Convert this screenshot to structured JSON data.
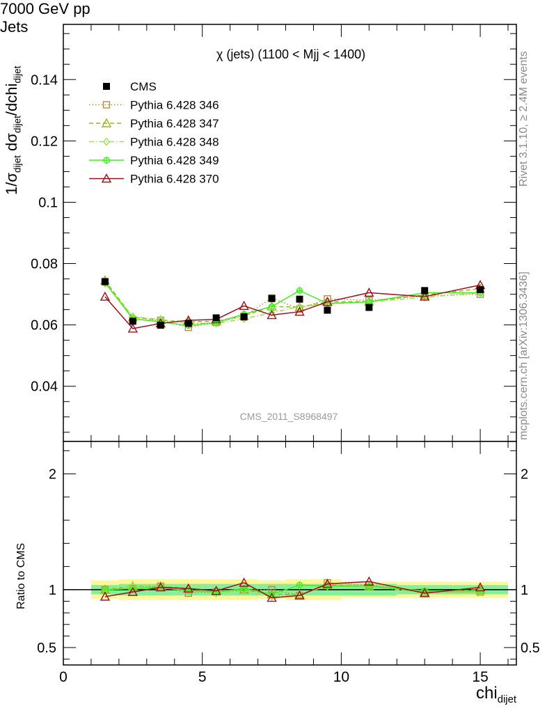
{
  "header": {
    "left": "7000 GeV pp",
    "right": "Jets"
  },
  "side_labels": {
    "rivet": "Rivet 3.1.10, ≥ 2.4M events",
    "mcplots": "mcplots.cern.ch [arXiv:1306.3436]"
  },
  "analysis_id": "CMS_2011_S8968497",
  "chart_data": [
    {
      "type": "line",
      "panel": "main",
      "title": "χ (jets) (1100 < Mjj < 1400)",
      "ylabel_main": "1/σ",
      "ylabel_sub1": "dijet",
      "ylabel_mid": " dσ",
      "ylabel_sub2": "dijet",
      "ylabel_end": "/dchi",
      "ylabel_sub3": "dijet",
      "xlim": [
        0,
        16.3
      ],
      "ylim": [
        0.022,
        0.158
      ],
      "yticks": [
        0.04,
        0.06,
        0.08,
        0.1,
        0.12,
        0.14
      ],
      "ytick_labels": [
        "0.04",
        "0.06",
        "0.08",
        "0.1",
        "0.12",
        "0.14"
      ],
      "legend_position": "top-left",
      "x": [
        1.5,
        2.5,
        3.5,
        4.5,
        5.5,
        6.5,
        7.5,
        8.5,
        9.5,
        11.0,
        13.0,
        15.0
      ],
      "series": [
        {
          "name": "CMS",
          "color": "#000000",
          "marker": "filled-square",
          "line": "none",
          "values": [
            0.0741,
            0.0612,
            0.0599,
            0.0605,
            0.0623,
            0.0626,
            0.0686,
            0.0684,
            0.0648,
            0.0657,
            0.0712,
            0.0715
          ]
        },
        {
          "name": "Pythia 6.428 346",
          "color": "#b8894a",
          "marker": "open-square",
          "line": "dotted",
          "values": [
            0.0741,
            0.0618,
            0.0615,
            0.0592,
            0.0608,
            0.0628,
            0.0688,
            0.0652,
            0.0685,
            0.068,
            0.0695,
            0.07
          ]
        },
        {
          "name": "Pythia 6.428 347",
          "color": "#a0b020",
          "marker": "open-triangle",
          "line": "dashed",
          "values": [
            0.0745,
            0.0625,
            0.0616,
            0.061,
            0.0612,
            0.063,
            0.066,
            0.0658,
            0.0675,
            0.0676,
            0.0698,
            0.0718
          ]
        },
        {
          "name": "Pythia 6.428 348",
          "color": "#99e04a",
          "marker": "open-diamond",
          "line": "dashdot",
          "values": [
            0.0735,
            0.0627,
            0.0618,
            0.0605,
            0.0605,
            0.062,
            0.064,
            0.066,
            0.0668,
            0.0675,
            0.069,
            0.0705
          ]
        },
        {
          "name": "Pythia 6.428 349",
          "color": "#44ee22",
          "marker": "open-circle",
          "line": "solid",
          "values": [
            0.0738,
            0.062,
            0.061,
            0.0598,
            0.0608,
            0.0635,
            0.066,
            0.0712,
            0.067,
            0.0675,
            0.0705,
            0.0705
          ]
        },
        {
          "name": "Pythia 6.428 370",
          "color": "#9b1020",
          "marker": "open-triangle",
          "line": "solid",
          "values": [
            0.0692,
            0.0588,
            0.0605,
            0.0615,
            0.0618,
            0.0662,
            0.0632,
            0.0643,
            0.0675,
            0.0705,
            0.0692,
            0.073
          ]
        }
      ]
    },
    {
      "type": "line",
      "panel": "ratio",
      "ylabel": "Ratio to CMS",
      "xlabel_main": "chi",
      "xlabel_sub": "dijet",
      "xlim": [
        0,
        16.3
      ],
      "ylim": [
        0.35,
        2.28
      ],
      "yticks": [
        0.5,
        1,
        2
      ],
      "ytick_labels": [
        "0.5",
        "1",
        "2"
      ],
      "xticks": [
        0,
        5,
        10,
        15
      ],
      "xtick_labels": [
        "0",
        "5",
        "10",
        "15"
      ],
      "bin_edges": [
        1,
        2,
        3,
        4,
        5,
        6,
        7,
        8,
        9,
        10,
        12,
        14,
        16
      ],
      "band_inner": [
        0.04,
        0.05,
        0.05,
        0.05,
        0.05,
        0.05,
        0.05,
        0.05,
        0.05,
        0.05,
        0.04,
        0.04
      ],
      "band_outer": [
        0.08,
        0.09,
        0.09,
        0.09,
        0.09,
        0.09,
        0.08,
        0.09,
        0.09,
        0.07,
        0.07,
        0.07
      ],
      "band_inner_color": "#88ee99",
      "band_outer_color": "#fff799",
      "reference_line": 1,
      "x": [
        1.5,
        2.5,
        3.5,
        4.5,
        5.5,
        6.5,
        7.5,
        8.5,
        9.5,
        11.0,
        13.0,
        15.0
      ],
      "series": [
        {
          "name": "Pythia 6.428 346",
          "color": "#b8894a",
          "marker": "open-square",
          "line": "dotted",
          "values": [
            1.0,
            1.01,
            1.03,
            0.97,
            0.98,
            1.0,
            1.0,
            0.95,
            1.06,
            1.04,
            0.98,
            0.98
          ]
        },
        {
          "name": "Pythia 6.428 347",
          "color": "#a0b020",
          "marker": "open-triangle",
          "line": "dashed",
          "values": [
            1.0,
            1.03,
            1.03,
            1.01,
            0.99,
            1.0,
            0.96,
            0.96,
            1.04,
            1.03,
            0.98,
            1.0
          ]
        },
        {
          "name": "Pythia 6.428 348",
          "color": "#99e04a",
          "marker": "open-diamond",
          "line": "dashdot",
          "values": [
            0.99,
            1.03,
            1.03,
            1.0,
            0.97,
            0.99,
            0.94,
            0.96,
            1.03,
            1.03,
            0.97,
            0.98
          ]
        },
        {
          "name": "Pythia 6.428 349",
          "color": "#44ee22",
          "marker": "open-circle",
          "line": "solid",
          "values": [
            1.0,
            1.01,
            1.02,
            0.99,
            0.98,
            1.01,
            0.96,
            1.04,
            1.03,
            1.03,
            0.99,
            0.99
          ]
        },
        {
          "name": "Pythia 6.428 370",
          "color": "#9b1020",
          "marker": "open-triangle",
          "line": "solid",
          "values": [
            0.94,
            0.98,
            1.02,
            1.01,
            0.99,
            1.06,
            0.93,
            0.95,
            1.05,
            1.07,
            0.97,
            1.02
          ]
        }
      ]
    }
  ]
}
